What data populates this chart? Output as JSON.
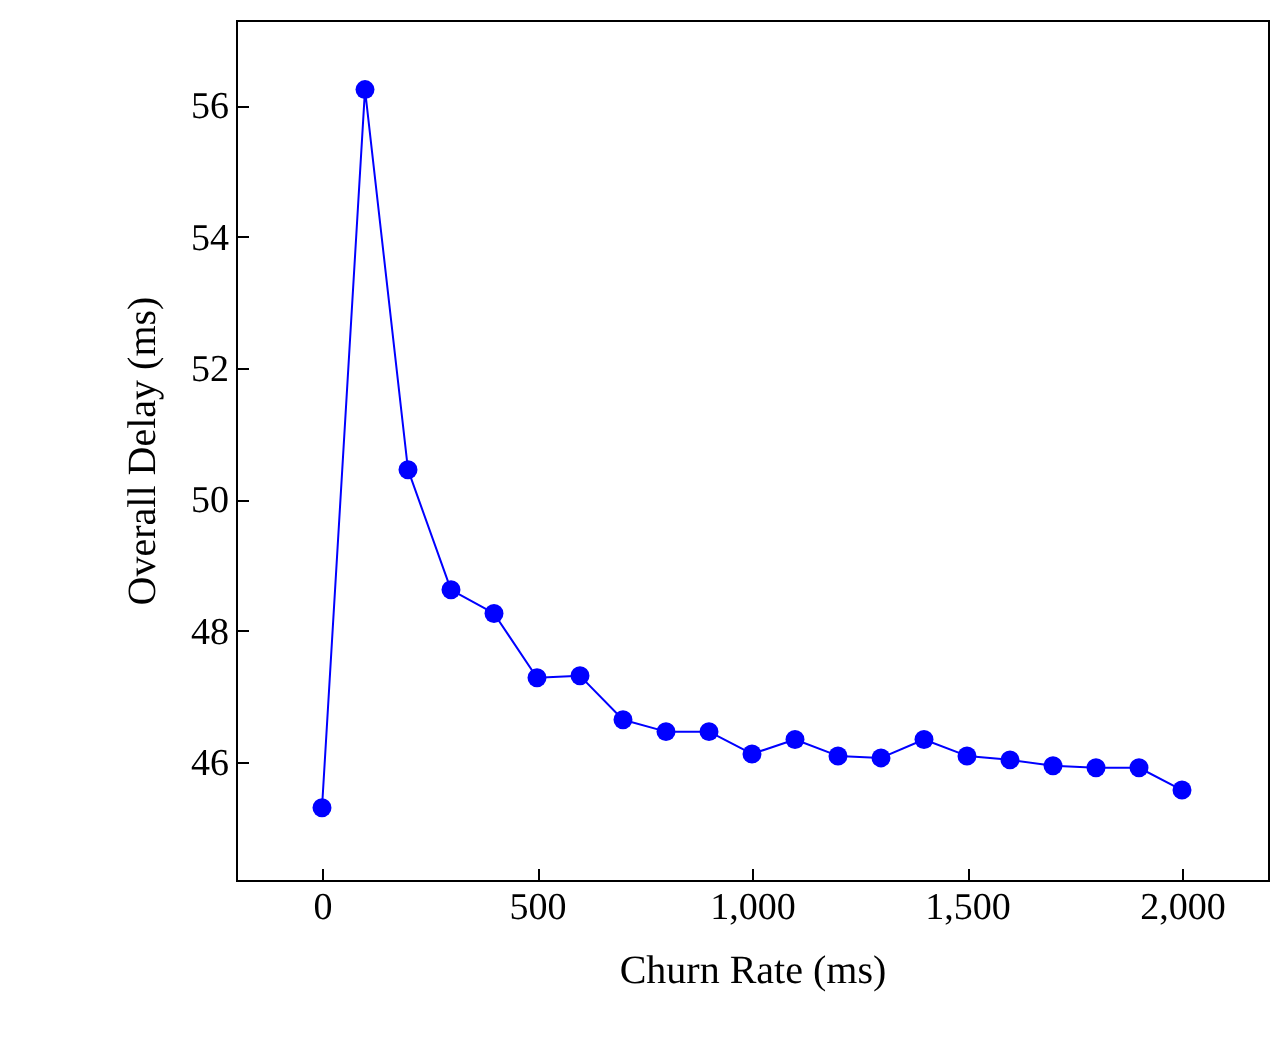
{
  "chart_data": {
    "type": "line",
    "xlabel": "Churn Rate (ms)",
    "ylabel": "Overall Delay (ms)",
    "x": [
      0,
      100,
      200,
      300,
      400,
      500,
      600,
      700,
      800,
      900,
      1000,
      1100,
      1200,
      1300,
      1400,
      1500,
      1600,
      1700,
      1800,
      1900,
      2000
    ],
    "series": [
      {
        "color": "#0000ff",
        "values": [
          45.3,
          56.24,
          50.45,
          48.62,
          48.26,
          47.28,
          47.31,
          46.64,
          46.46,
          46.46,
          46.12,
          46.34,
          46.09,
          46.06,
          46.34,
          46.09,
          46.03,
          45.94,
          45.91,
          45.91,
          45.57
        ]
      }
    ],
    "xlim": [
      -200,
      2200
    ],
    "ylim": [
      44.2,
      57.3
    ],
    "xticks": [
      0,
      500,
      {
        "value": 1000,
        "label": "1,000"
      },
      {
        "value": 1500,
        "label": "1,500"
      },
      {
        "value": 2000,
        "label": "2,000"
      }
    ],
    "yticks": [
      46,
      48,
      50,
      52,
      54,
      56
    ],
    "marker": "circle",
    "line_style": "solid",
    "grid": false
  }
}
